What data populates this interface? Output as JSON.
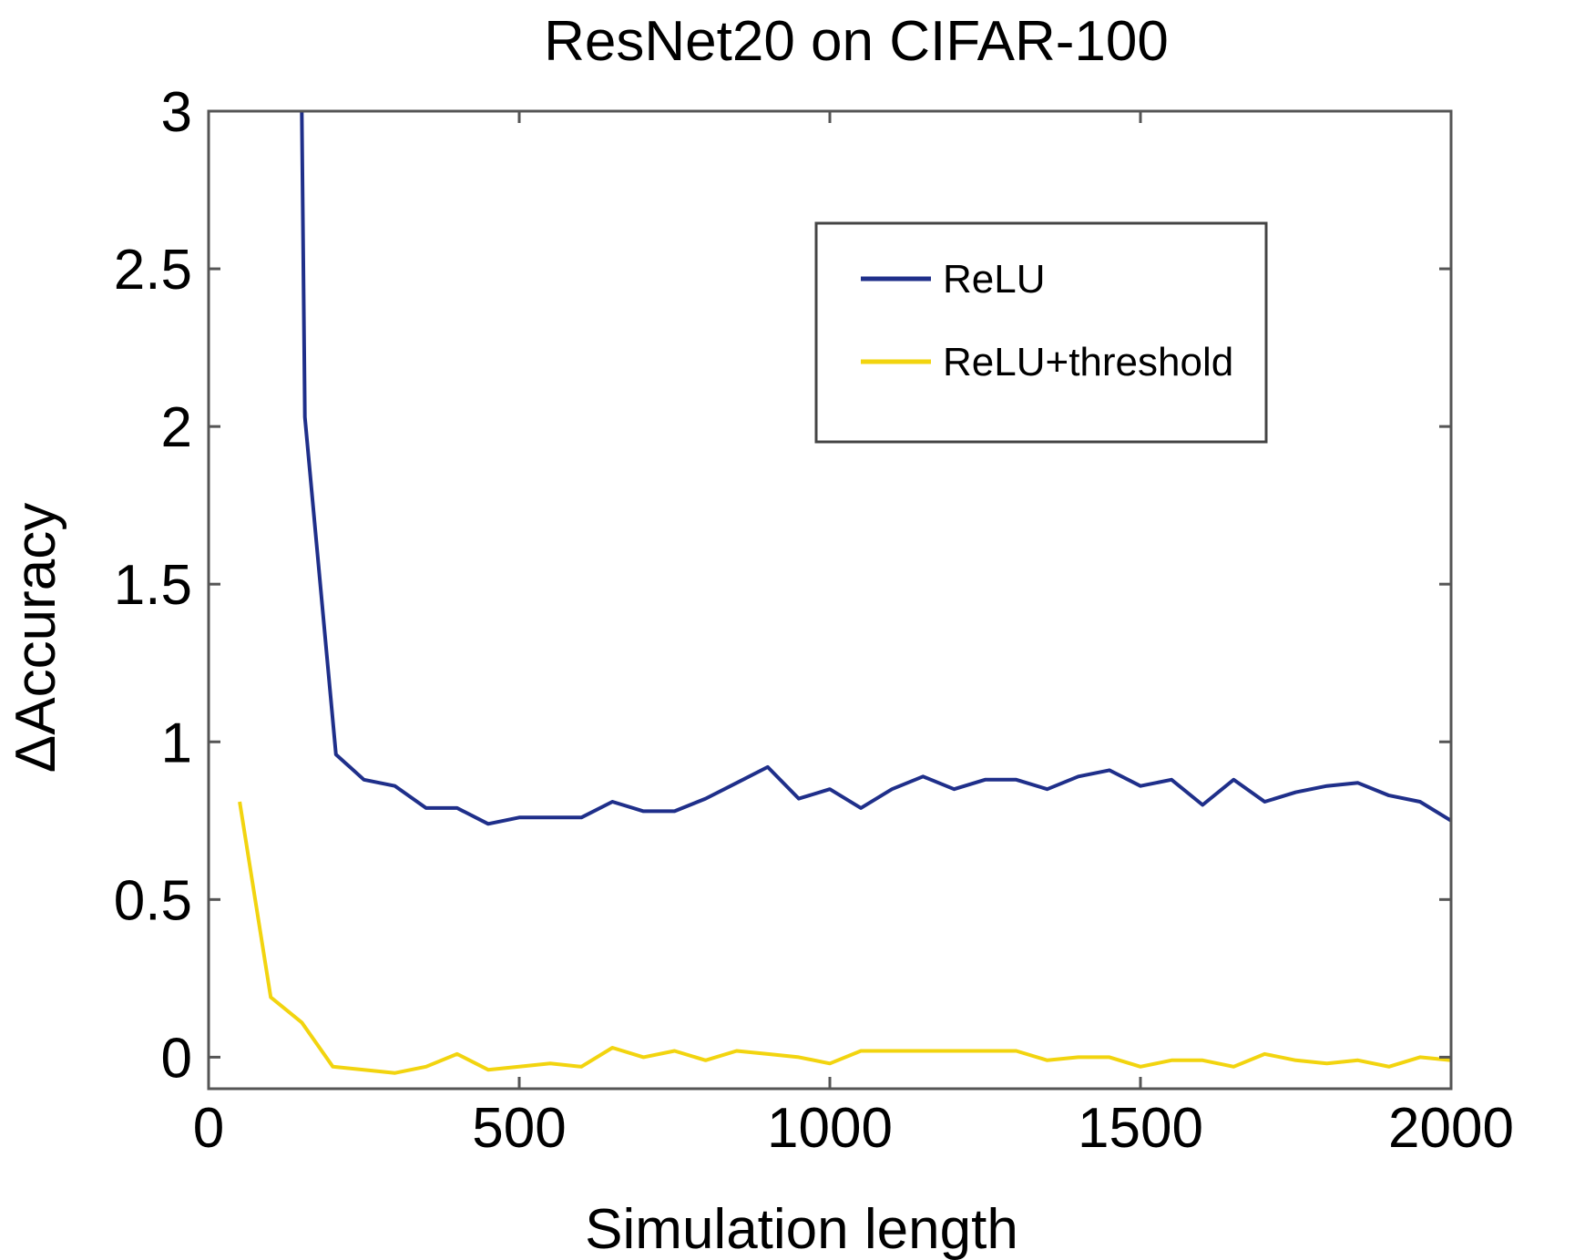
{
  "chart_data": {
    "type": "line",
    "title": "ResNet20 on CIFAR-100",
    "xlabel": "Simulation length",
    "ylabel": "ΔAccuracy",
    "xlim": [
      0,
      2000
    ],
    "ylim": [
      -0.1,
      3
    ],
    "xticks": [
      0,
      500,
      1000,
      1500,
      2000
    ],
    "xtick_labels": [
      "0",
      "500",
      "1000",
      "1500",
      "2000"
    ],
    "yticks": [
      0,
      0.5,
      1,
      1.5,
      2,
      2.5,
      3
    ],
    "ytick_labels": [
      "0",
      "0.5",
      "1",
      "1.5",
      "2",
      "2.5",
      "3"
    ],
    "grid": false,
    "legend_position": "top-right",
    "series": [
      {
        "name": "ReLU",
        "color": "#1f2f8a",
        "x": [
          150,
          150,
          155,
          205,
          250,
          300,
          350,
          400,
          450,
          500,
          550,
          600,
          650,
          700,
          750,
          800,
          850,
          900,
          950,
          1000,
          1050,
          1100,
          1150,
          1200,
          1250,
          1300,
          1350,
          1400,
          1450,
          1500,
          1550,
          1600,
          1650,
          1700,
          1750,
          1800,
          1850,
          1900,
          1950,
          2000
        ],
        "y": [
          3.0,
          3.0,
          2.03,
          0.96,
          0.88,
          0.86,
          0.79,
          0.79,
          0.74,
          0.76,
          0.76,
          0.76,
          0.81,
          0.78,
          0.78,
          0.82,
          0.87,
          0.92,
          0.82,
          0.85,
          0.79,
          0.85,
          0.89,
          0.85,
          0.88,
          0.88,
          0.85,
          0.89,
          0.91,
          0.86,
          0.88,
          0.8,
          0.88,
          0.81,
          0.84,
          0.86,
          0.87,
          0.83,
          0.81,
          0.75
        ]
      },
      {
        "name": "ReLU+threshold",
        "color": "#f2d40f",
        "x": [
          50,
          100,
          150,
          200,
          250,
          300,
          350,
          400,
          450,
          500,
          550,
          600,
          650,
          700,
          750,
          800,
          850,
          900,
          950,
          1000,
          1050,
          1100,
          1150,
          1200,
          1250,
          1300,
          1350,
          1400,
          1450,
          1500,
          1550,
          1600,
          1650,
          1700,
          1750,
          1800,
          1850,
          1900,
          1950,
          2000
        ],
        "y": [
          0.81,
          0.19,
          0.11,
          -0.03,
          -0.04,
          -0.05,
          -0.03,
          0.01,
          -0.04,
          -0.03,
          -0.02,
          -0.03,
          0.03,
          0.0,
          0.02,
          -0.01,
          0.02,
          0.01,
          0.0,
          -0.02,
          0.02,
          0.02,
          0.02,
          0.02,
          0.02,
          0.02,
          -0.01,
          0.0,
          0.0,
          -0.03,
          -0.01,
          -0.01,
          -0.03,
          0.01,
          -0.01,
          -0.02,
          -0.01,
          -0.03,
          0.0,
          -0.01
        ]
      }
    ]
  }
}
